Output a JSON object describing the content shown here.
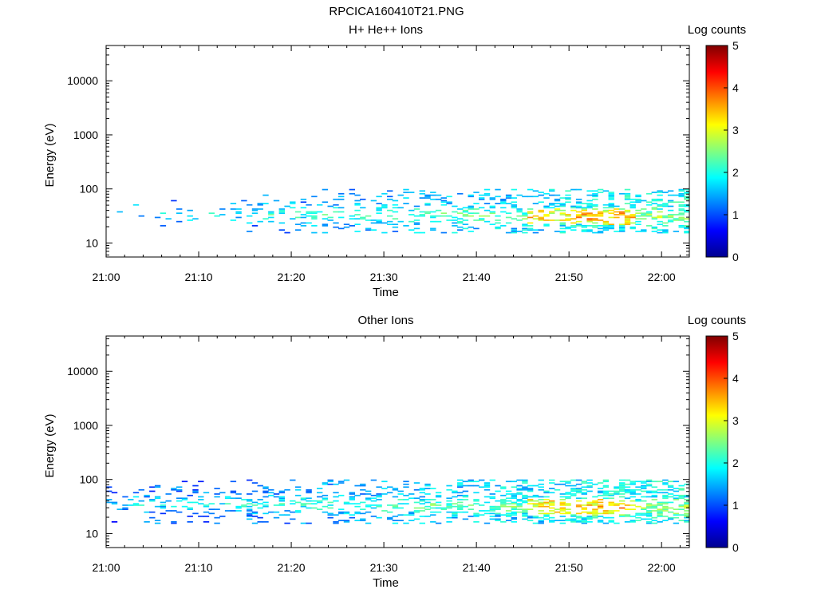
{
  "figure_title": "RPCICA160410T21.PNG",
  "colormap": [
    "#00008f",
    "#0000ff",
    "#0080ff",
    "#00ffff",
    "#80ff80",
    "#ffff00",
    "#ff8000",
    "#ff0000",
    "#800000"
  ],
  "chart_data": [
    {
      "type": "heatmap",
      "title": "H+ He++ Ions",
      "xlabel": "Time",
      "ylabel": "Energy (eV)",
      "colorbar_label": "Log counts",
      "colorbar_range": [
        0,
        5
      ],
      "colorbar_ticks": [
        "0",
        "1",
        "2",
        "3",
        "4",
        "5"
      ],
      "xlim": [
        "21:00",
        "22:03"
      ],
      "xticks": [
        "21:00",
        "21:10",
        "21:20",
        "21:30",
        "21:40",
        "21:50",
        "22:00"
      ],
      "ylim": [
        5.5,
        45000
      ],
      "y_scale": "log",
      "yticks": [
        "10",
        "100",
        "1000",
        "10000"
      ],
      "seed": 11,
      "low_energy_band_eV": [
        15,
        100
      ]
    },
    {
      "type": "heatmap",
      "title": "Other Ions",
      "xlabel": "Time",
      "ylabel": "Energy (eV)",
      "colorbar_label": "Log counts",
      "colorbar_range": [
        0,
        5
      ],
      "colorbar_ticks": [
        "0",
        "1",
        "2",
        "3",
        "4",
        "5"
      ],
      "xlim": [
        "21:00",
        "22:03"
      ],
      "xticks": [
        "21:00",
        "21:10",
        "21:20",
        "21:30",
        "21:40",
        "21:50",
        "22:00"
      ],
      "ylim": [
        5.5,
        45000
      ],
      "y_scale": "log",
      "yticks": [
        "10",
        "100",
        "1000",
        "10000"
      ],
      "seed": 29,
      "low_energy_band_eV": [
        15,
        100
      ]
    }
  ]
}
